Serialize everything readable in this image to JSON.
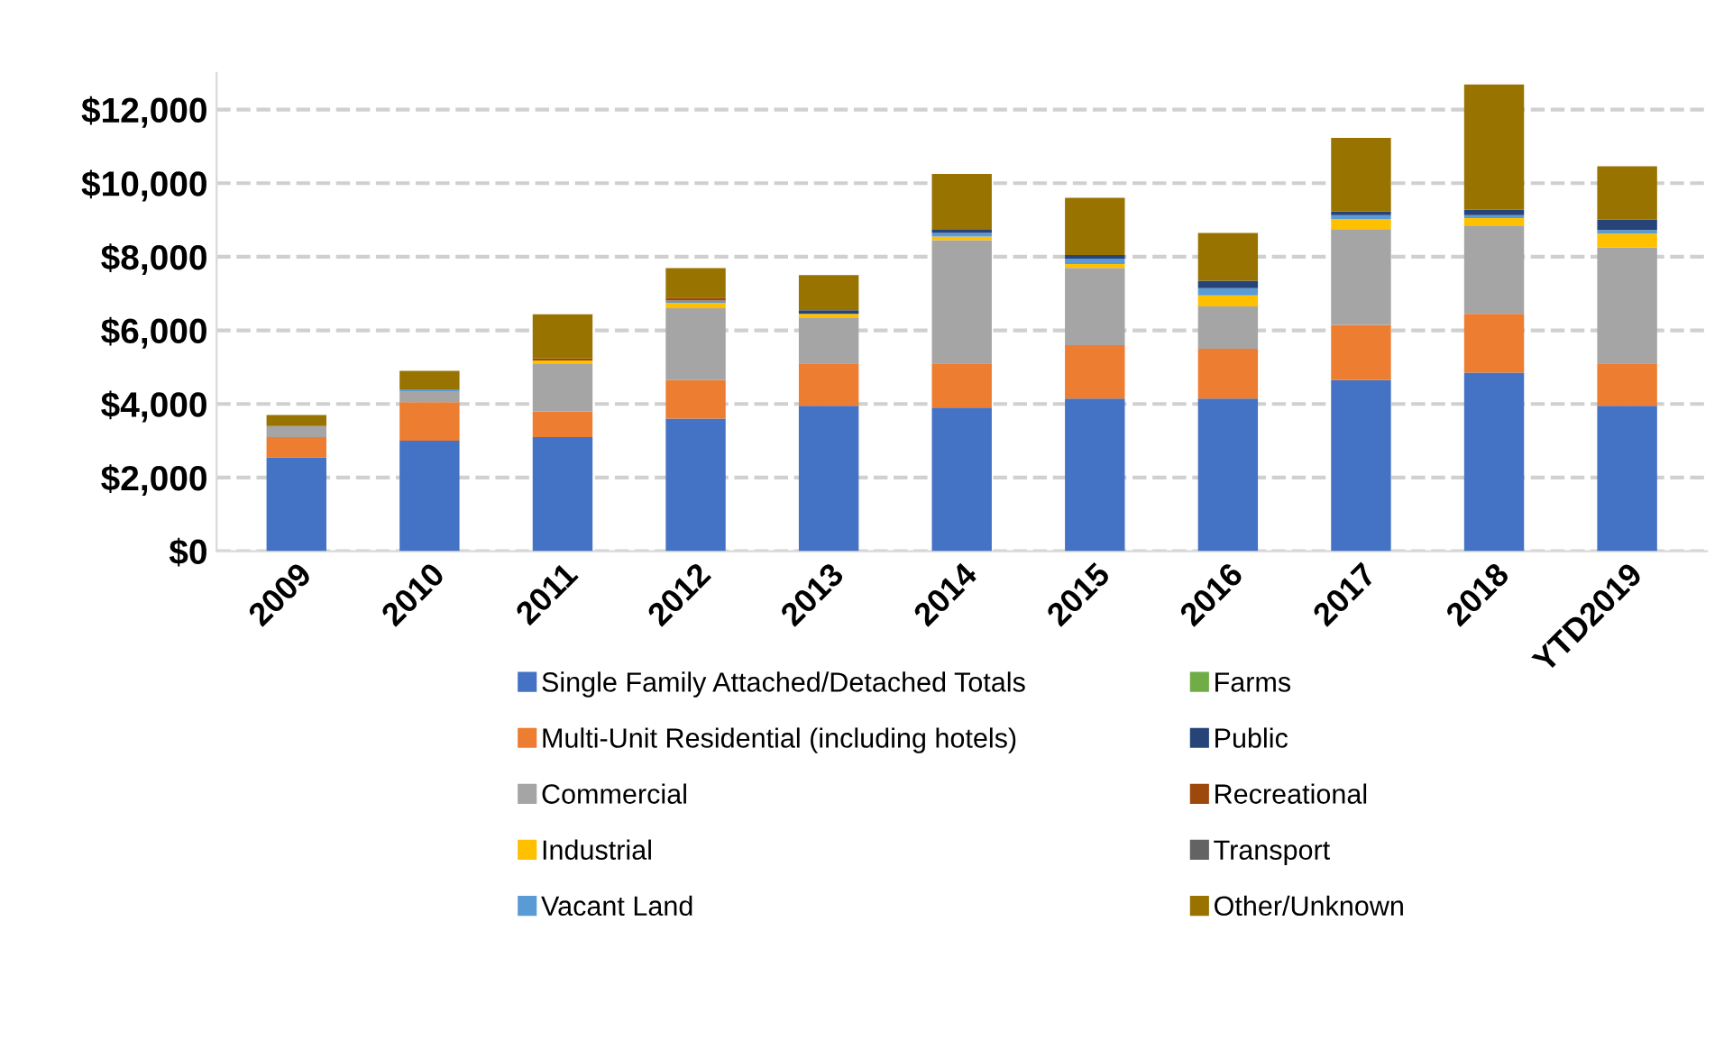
{
  "chart_data": {
    "type": "bar",
    "stacked": true,
    "categories": [
      "2009",
      "2010",
      "2011",
      "2012",
      "2013",
      "2014",
      "2015",
      "2016",
      "2017",
      "2018",
      "YTD2019"
    ],
    "series": [
      {
        "name": "Single Family Attached/Detached Totals",
        "color": "#4472c4",
        "values": [
          2550,
          3000,
          3100,
          3600,
          3950,
          3900,
          4150,
          4150,
          4650,
          4850,
          3950
        ]
      },
      {
        "name": "Multi-Unit Residential (including hotels)",
        "color": "#ed7d31",
        "values": [
          550,
          1050,
          700,
          1050,
          1150,
          1200,
          1450,
          1350,
          1500,
          1600,
          1150
        ]
      },
      {
        "name": "Commercial",
        "color": "#a5a5a5",
        "values": [
          300,
          300,
          1300,
          1950,
          1250,
          3350,
          2100,
          1150,
          2600,
          2400,
          3150
        ]
      },
      {
        "name": "Industrial",
        "color": "#ffc000",
        "values": [
          0,
          0,
          80,
          150,
          100,
          100,
          100,
          300,
          280,
          200,
          380
        ]
      },
      {
        "name": "Vacant Land",
        "color": "#5b9bd5",
        "values": [
          0,
          50,
          0,
          60,
          0,
          100,
          150,
          200,
          100,
          80,
          100
        ]
      },
      {
        "name": "Farms",
        "color": "#70ad47",
        "values": [
          0,
          0,
          0,
          0,
          0,
          0,
          0,
          0,
          0,
          0,
          0
        ]
      },
      {
        "name": "Public",
        "color": "#264478",
        "values": [
          0,
          0,
          0,
          0,
          100,
          100,
          100,
          200,
          100,
          150,
          280
        ]
      },
      {
        "name": "Recreational",
        "color": "#9e480e",
        "values": [
          0,
          0,
          60,
          80,
          0,
          0,
          0,
          0,
          0,
          0,
          0
        ]
      },
      {
        "name": "Transport",
        "color": "#636363",
        "values": [
          0,
          0,
          0,
          0,
          0,
          0,
          0,
          0,
          0,
          0,
          0
        ]
      },
      {
        "name": "Other/Unknown",
        "color": "#997300",
        "values": [
          300,
          500,
          1200,
          800,
          950,
          1500,
          1550,
          1300,
          2000,
          3400,
          1450
        ]
      }
    ],
    "ylim": [
      0,
      13000
    ],
    "yticks": [
      {
        "value": 0,
        "label": "$0"
      },
      {
        "value": 2000,
        "label": "$2,000"
      },
      {
        "value": 4000,
        "label": "$4,000"
      },
      {
        "value": 6000,
        "label": "$6,000"
      },
      {
        "value": 8000,
        "label": "$8,000"
      },
      {
        "value": 10000,
        "label": "$10,000"
      },
      {
        "value": 12000,
        "label": "$12,000"
      }
    ],
    "grid": "y",
    "legend": "bottom"
  }
}
